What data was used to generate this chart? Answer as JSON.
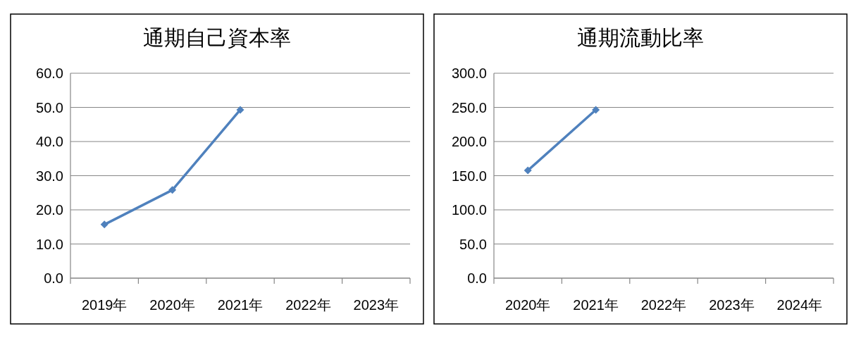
{
  "chart_data": [
    {
      "type": "line",
      "title": "通期自己資本率",
      "categories": [
        "2019年",
        "2020年",
        "2021年",
        "2022年",
        "2023年"
      ],
      "series": [
        {
          "color": "#4f81bd",
          "values": [
            15.7,
            25.8,
            49.3,
            null,
            null
          ]
        }
      ],
      "ylim": [
        0,
        60
      ],
      "yticks": [
        {
          "value": 0,
          "label": "0.0"
        },
        {
          "value": 10,
          "label": "10.0"
        },
        {
          "value": 20,
          "label": "20.0"
        },
        {
          "value": 30,
          "label": "30.0"
        },
        {
          "value": 40,
          "label": "40.0"
        },
        {
          "value": 50,
          "label": "50.0"
        },
        {
          "value": 60,
          "label": "60.0"
        }
      ],
      "grid": "y",
      "marker": "diamond",
      "line_style": "solid"
    },
    {
      "type": "line",
      "title": "通期流動比率",
      "categories": [
        "2020年",
        "2021年",
        "2022年",
        "2023年",
        "2024年"
      ],
      "series": [
        {
          "color": "#4f81bd",
          "values": [
            157.7,
            246.4,
            null,
            null,
            null
          ]
        }
      ],
      "ylim": [
        0,
        300
      ],
      "yticks": [
        {
          "value": 0,
          "label": "0.0"
        },
        {
          "value": 50,
          "label": "50.0"
        },
        {
          "value": 100,
          "label": "100.0"
        },
        {
          "value": 150,
          "label": "150.0"
        },
        {
          "value": 200,
          "label": "200.0"
        },
        {
          "value": 250,
          "label": "250.0"
        },
        {
          "value": 300,
          "label": "300.0"
        }
      ],
      "grid": "y",
      "marker": "diamond",
      "line_style": "solid"
    }
  ]
}
